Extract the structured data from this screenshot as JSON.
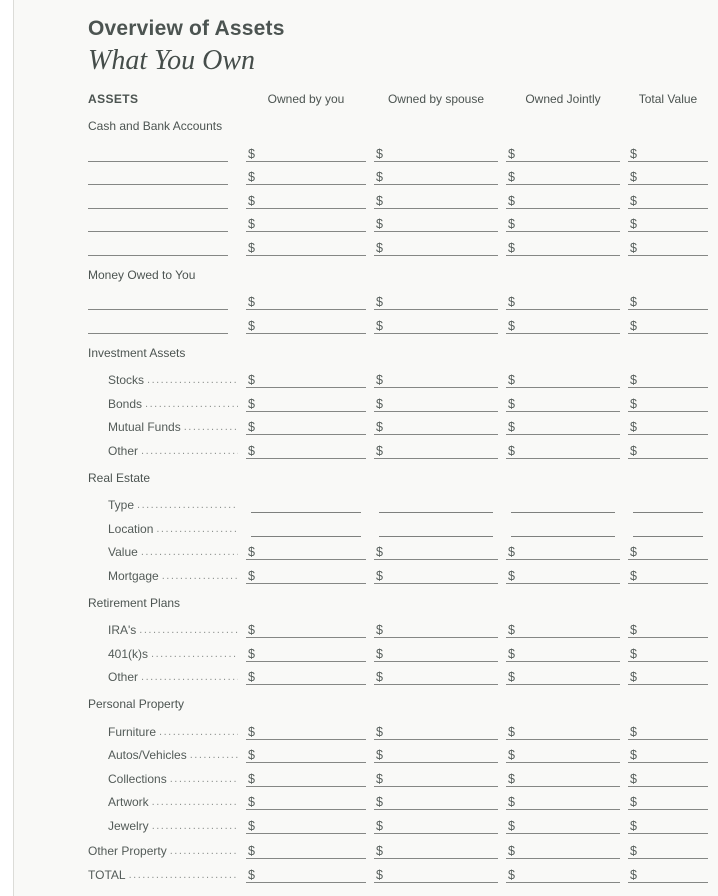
{
  "colors": {
    "page-bg": "#f9f9f7",
    "strip-bg": "#ffffff",
    "divider": "#dcdcd8",
    "ink-dark": "#4c5451",
    "ink": "#535b58",
    "line": "#858785",
    "dots": "#8d918e"
  },
  "header": {
    "title": "Overview of Assets",
    "subtitle": "What You Own"
  },
  "table": {
    "columns": [
      "ASSETS",
      "Owned by you",
      "Owned by spouse",
      "Owned Jointly",
      "Total Value"
    ],
    "column_keys": [
      "owned-by-you",
      "owned-by-spouse",
      "owned-jointly",
      "total-value"
    ],
    "currency_symbol": "$",
    "sections": [
      {
        "title": "Cash and Bank Accounts",
        "rows": [
          {
            "type": "blank",
            "label": "",
            "indent": false
          },
          {
            "type": "blank",
            "label": "",
            "indent": false
          },
          {
            "type": "blank",
            "label": "",
            "indent": false
          },
          {
            "type": "blank",
            "label": "",
            "indent": false
          },
          {
            "type": "blank",
            "label": "",
            "indent": false
          }
        ]
      },
      {
        "title": "Money Owed to You",
        "rows": [
          {
            "type": "blank",
            "label": "",
            "indent": false
          },
          {
            "type": "blank",
            "label": "",
            "indent": false
          }
        ]
      },
      {
        "title": "Investment Assets",
        "rows": [
          {
            "type": "dollar",
            "label": "Stocks",
            "indent": true
          },
          {
            "type": "dollar",
            "label": "Bonds",
            "indent": true
          },
          {
            "type": "dollar",
            "label": "Mutual Funds",
            "indent": true
          },
          {
            "type": "dollar",
            "label": "Other",
            "indent": true
          }
        ]
      },
      {
        "title": "Real Estate",
        "rows": [
          {
            "type": "plain",
            "label": "Type",
            "indent": true
          },
          {
            "type": "plain",
            "label": "Location",
            "indent": true
          },
          {
            "type": "dollar",
            "label": "Value",
            "indent": true
          },
          {
            "type": "dollar",
            "label": "Mortgage",
            "indent": true
          }
        ]
      },
      {
        "title": "Retirement Plans",
        "rows": [
          {
            "type": "dollar",
            "label": "IRA's",
            "indent": true
          },
          {
            "type": "dollar",
            "label": "401(k)s",
            "indent": true
          },
          {
            "type": "dollar",
            "label": "Other",
            "indent": true
          }
        ]
      },
      {
        "title": "Personal Property",
        "rows": [
          {
            "type": "dollar",
            "label": "Furniture",
            "indent": true
          },
          {
            "type": "dollar",
            "label": "Autos/Vehicles",
            "indent": true
          },
          {
            "type": "dollar",
            "label": "Collections",
            "indent": true
          },
          {
            "type": "dollar",
            "label": "Artwork",
            "indent": true
          },
          {
            "type": "dollar",
            "label": "Jewelry",
            "indent": true
          }
        ]
      },
      {
        "title": "",
        "rows": [
          {
            "type": "dollar",
            "label": "Other Property",
            "indent": false
          },
          {
            "type": "dollar",
            "label": "TOTAL",
            "indent": false
          }
        ]
      }
    ]
  },
  "decor": {
    "dot_leader": "..................................................................."
  }
}
